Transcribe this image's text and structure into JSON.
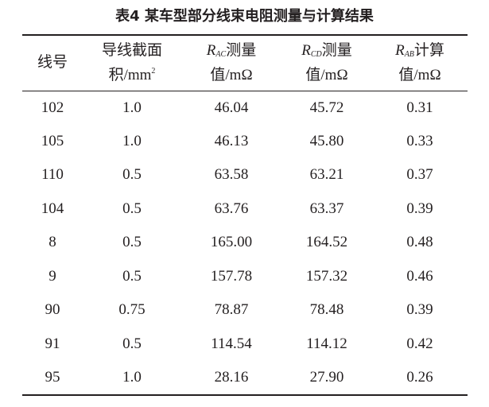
{
  "title": "表4 某车型部分线束电阻测量与计算结果",
  "table": {
    "header": [
      {
        "lines": [
          "线号"
        ]
      },
      {
        "lines": [
          "导线截面",
          "积/mm"
        ],
        "sup": "2"
      },
      {
        "symbol": "R",
        "sub": "AC",
        "lines": [
          "测量",
          "值/mΩ"
        ]
      },
      {
        "symbol": "R",
        "sub": "CD",
        "lines": [
          "测量",
          "值/mΩ"
        ]
      },
      {
        "symbol": "R",
        "sub": "AB",
        "lines": [
          "计算",
          "值/mΩ"
        ]
      }
    ],
    "rows": [
      [
        "102",
        "1.0",
        "46.04",
        "45.72",
        "0.31"
      ],
      [
        "105",
        "1.0",
        "46.13",
        "45.80",
        "0.33"
      ],
      [
        "110",
        "0.5",
        "63.58",
        "63.21",
        "0.37"
      ],
      [
        "104",
        "0.5",
        "63.76",
        "63.37",
        "0.39"
      ],
      [
        "8",
        "0.5",
        "165.00",
        "164.52",
        "0.48"
      ],
      [
        "9",
        "0.5",
        "157.78",
        "157.32",
        "0.46"
      ],
      [
        "90",
        "0.75",
        "78.87",
        "78.48",
        "0.39"
      ],
      [
        "91",
        "0.5",
        "114.54",
        "114.12",
        "0.42"
      ],
      [
        "95",
        "1.0",
        "28.16",
        "27.90",
        "0.26"
      ]
    ]
  }
}
